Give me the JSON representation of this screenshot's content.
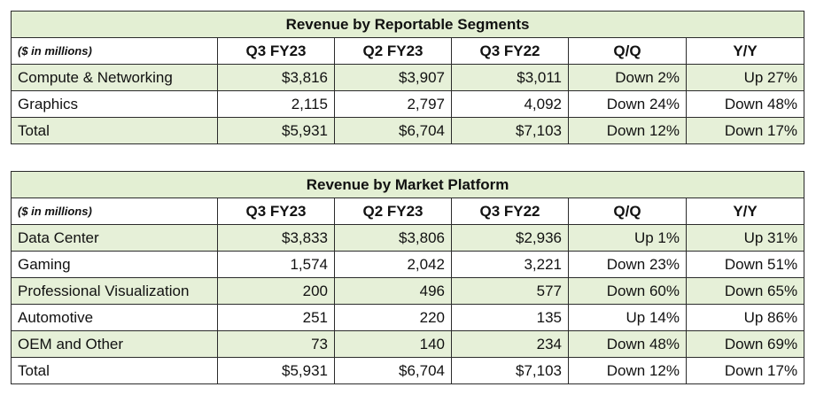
{
  "chart_data": [
    {
      "type": "table",
      "title": "Revenue by Reportable Segments",
      "unit_label": "($ in millions)",
      "columns": [
        "Q3 FY23",
        "Q2 FY23",
        "Q3 FY22",
        "Q/Q",
        "Y/Y"
      ],
      "rows": [
        {
          "label": "Compute & Networking",
          "cells": [
            "$3,816",
            "$3,907",
            "$3,011",
            "Down 2%",
            "Up 27%"
          ]
        },
        {
          "label": "Graphics",
          "cells": [
            "2,115",
            "2,797",
            "4,092",
            "Down 24%",
            "Down 48%"
          ]
        },
        {
          "label": "Total",
          "cells": [
            "$5,931",
            "$6,704",
            "$7,103",
            "Down 12%",
            "Down 17%"
          ]
        }
      ]
    },
    {
      "type": "table",
      "title": "Revenue by Market Platform",
      "unit_label": "($ in millions)",
      "columns": [
        "Q3 FY23",
        "Q2 FY23",
        "Q3 FY22",
        "Q/Q",
        "Y/Y"
      ],
      "rows": [
        {
          "label": "Data Center",
          "cells": [
            "$3,833",
            "$3,806",
            "$2,936",
            "Up 1%",
            "Up 31%"
          ]
        },
        {
          "label": "Gaming",
          "cells": [
            "1,574",
            "2,042",
            "3,221",
            "Down 23%",
            "Down 51%"
          ]
        },
        {
          "label": "Professional Visualization",
          "cells": [
            "200",
            "496",
            "577",
            "Down 60%",
            "Down 65%"
          ]
        },
        {
          "label": "Automotive",
          "cells": [
            "251",
            "220",
            "135",
            "Up 14%",
            "Up 86%"
          ]
        },
        {
          "label": "OEM and Other",
          "cells": [
            "73",
            "140",
            "234",
            "Down 48%",
            "Down 69%"
          ]
        },
        {
          "label": "Total",
          "cells": [
            "$5,931",
            "$6,704",
            "$7,103",
            "Down 12%",
            "Down 17%"
          ]
        }
      ]
    }
  ],
  "colors": {
    "shade": "#e6f0d8",
    "title_bg": "#e3efd3",
    "border": "#2b2b2b"
  }
}
